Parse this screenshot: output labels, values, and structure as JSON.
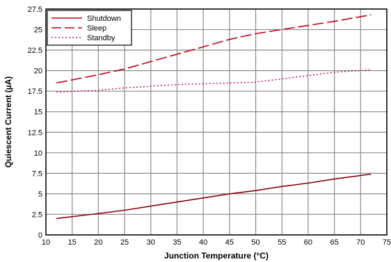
{
  "chart_data": {
    "type": "line",
    "xlabel": "Junction Temperature (°C)",
    "ylabel": "Quiescent Current (µA)",
    "xlim": [
      10,
      75
    ],
    "ylim": [
      0,
      27.5
    ],
    "xticks": [
      "10",
      "15",
      "20",
      "25",
      "30",
      "35",
      "40",
      "45",
      "50",
      "55",
      "60",
      "65",
      "70",
      "75"
    ],
    "yticks": [
      "0",
      "2.5",
      "5",
      "7.5",
      "10",
      "12.5",
      "15",
      "17.5",
      "20",
      "22.5",
      "25",
      "27.5"
    ],
    "grid": true,
    "legend_position": "top-left",
    "series": [
      {
        "name": "Shutdown",
        "style": "solid",
        "color": "#c0001a",
        "x": [
          12,
          20,
          25,
          30,
          35,
          40,
          45,
          50,
          55,
          60,
          65,
          72
        ],
        "y": [
          2.0,
          2.6,
          3.0,
          3.5,
          4.0,
          4.5,
          5.0,
          5.4,
          5.9,
          6.3,
          6.8,
          7.4
        ]
      },
      {
        "name": "Sleep",
        "style": "dashed",
        "color": "#c0001a",
        "x": [
          12,
          20,
          25,
          30,
          35,
          40,
          45,
          50,
          55,
          60,
          65,
          72
        ],
        "y": [
          18.5,
          19.5,
          20.2,
          21.1,
          22.0,
          22.9,
          23.8,
          24.5,
          25.0,
          25.5,
          26.0,
          26.8
        ]
      },
      {
        "name": "Standby",
        "style": "dotted",
        "color": "#c0001a",
        "x": [
          12,
          20,
          25,
          30,
          35,
          40,
          45,
          50,
          55,
          60,
          65,
          72
        ],
        "y": [
          17.4,
          17.6,
          17.9,
          18.1,
          18.3,
          18.4,
          18.5,
          18.6,
          19.0,
          19.4,
          19.8,
          20.1
        ]
      }
    ]
  }
}
